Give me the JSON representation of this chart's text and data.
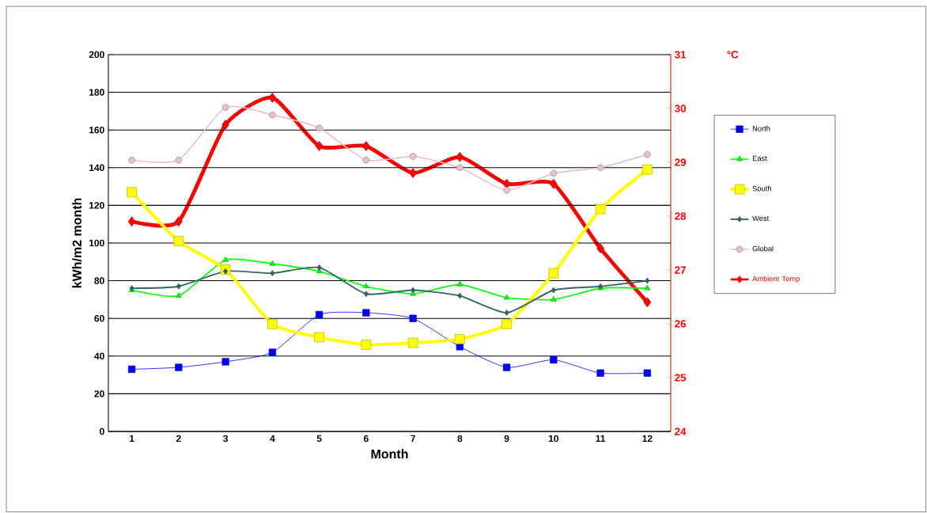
{
  "chart_data": {
    "type": "line",
    "xlabel": "Month",
    "ylabel": "kWh/m2 month",
    "y2label": "°C",
    "categories": [
      "1",
      "2",
      "3",
      "4",
      "5",
      "6",
      "7",
      "8",
      "9",
      "10",
      "11",
      "12"
    ],
    "ylim": [
      0,
      200
    ],
    "yticks": [
      0,
      20,
      40,
      60,
      80,
      100,
      120,
      140,
      160,
      180,
      200
    ],
    "y2lim": [
      24,
      31
    ],
    "y2ticks": [
      24,
      25,
      26,
      27,
      28,
      29,
      30,
      31
    ],
    "grid": "y",
    "legend": "right",
    "series": [
      {
        "name": "North",
        "color": "#0000ff",
        "marker": "square",
        "values": [
          33,
          34,
          37,
          42,
          62,
          63,
          60,
          45,
          34,
          38,
          31,
          31
        ]
      },
      {
        "name": "East",
        "color": "#00ff00",
        "marker": "triangle",
        "values": [
          75,
          72,
          91,
          89,
          85,
          77,
          73,
          78,
          71,
          70,
          76,
          76
        ]
      },
      {
        "name": "South",
        "color": "#ffff00",
        "marker": "square",
        "values": [
          127,
          101,
          86,
          57,
          50,
          46,
          47,
          49,
          57,
          84,
          118,
          139
        ]
      },
      {
        "name": "West",
        "color": "#336666",
        "marker": "diamond",
        "values": [
          76,
          77,
          85,
          84,
          87,
          73,
          75,
          72,
          63,
          75,
          77,
          80
        ]
      },
      {
        "name": "Global",
        "color": "#e8c0c8",
        "marker": "circle",
        "values": [
          144,
          144,
          172,
          168,
          161,
          144,
          146,
          140,
          128,
          137,
          140,
          147
        ]
      },
      {
        "name": "Ambient Temp",
        "color": "#ff0000",
        "marker": "diamond",
        "axis": "y2",
        "values": [
          27.9,
          27.9,
          29.7,
          30.2,
          29.3,
          29.3,
          28.8,
          29.1,
          28.6,
          28.6,
          27.4,
          26.4
        ]
      }
    ]
  }
}
